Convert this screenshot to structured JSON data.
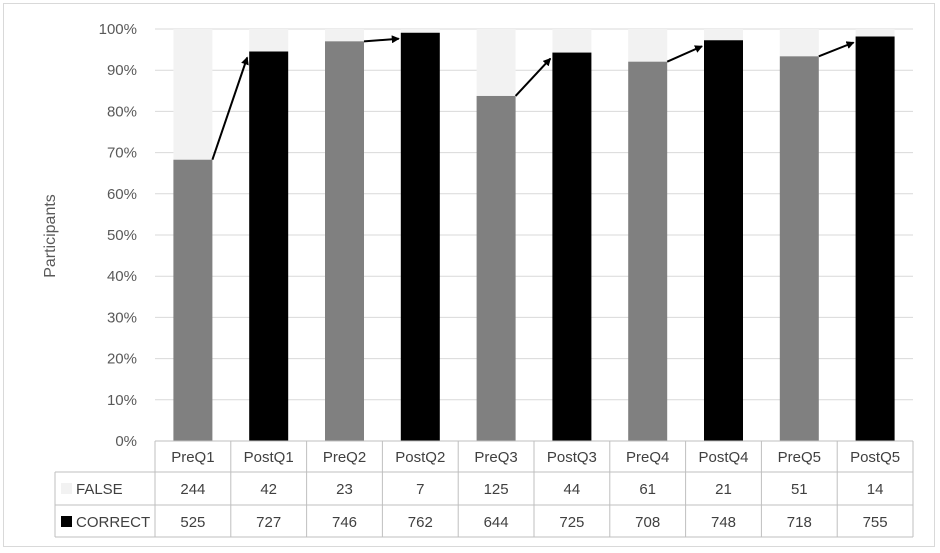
{
  "chart_data": {
    "type": "bar",
    "stacked": "percent",
    "categories": [
      "PreQ1",
      "PostQ1",
      "PreQ2",
      "PostQ2",
      "PreQ3",
      "PostQ3",
      "PreQ4",
      "PostQ4",
      "PreQ5",
      "PostQ5"
    ],
    "series": [
      {
        "name": "FALSE",
        "values": [
          244,
          42,
          23,
          7,
          125,
          44,
          61,
          21,
          51,
          14
        ]
      },
      {
        "name": "CORRECT",
        "values": [
          525,
          727,
          746,
          762,
          644,
          725,
          708,
          748,
          718,
          755
        ]
      }
    ],
    "ylabel": "Participants",
    "ylim": [
      0,
      1
    ],
    "yticks": [
      "0%",
      "10%",
      "20%",
      "30%",
      "40%",
      "50%",
      "60%",
      "70%",
      "80%",
      "90%",
      "100%"
    ],
    "grid": true,
    "data_table": true,
    "arrows": "Pre to Post for each question",
    "colors": {
      "false": "#f2f2f2",
      "correct_pre": "#808080",
      "correct_post": "#000000"
    }
  }
}
